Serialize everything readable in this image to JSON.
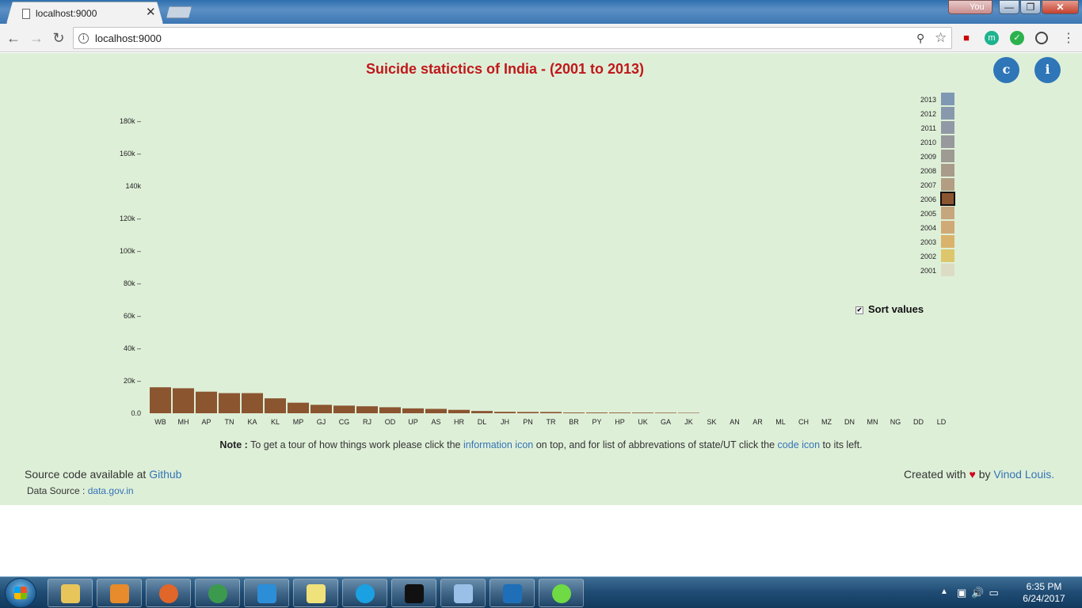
{
  "browser": {
    "tab_title": "localhost:9000",
    "tab_close": "✕",
    "url": "localhost:9000",
    "profile": "You",
    "buttons": {
      "back": "←",
      "forward": "→",
      "reload": "↻",
      "menu": "⋮",
      "zoom": "🔍",
      "bookmark": "☆"
    },
    "window": {
      "minimize": "—",
      "maximize": "❐",
      "close": "✕"
    },
    "extensions": [
      "m",
      "✓"
    ]
  },
  "page": {
    "title": "Suicide statictics of India - (2001 to 2013)",
    "code_button": "c",
    "info_button": "i",
    "sort_label": "Sort values",
    "sort_checked": true,
    "selected_year": "2006",
    "note": {
      "label": "Note :",
      "text1": "To get a tour of how things work please click the",
      "link1": "information icon",
      "text2": "on top, and for list of abbrevations of state/UT click the",
      "link2": "code icon",
      "text3": "to its left."
    },
    "footer": {
      "source_text": "Source code available at",
      "source_link": "Github",
      "data_text": "Data Source :",
      "data_link": "data.gov.in",
      "credit_text": "Created with",
      "heart": "♥",
      "credit_by": "by",
      "credit_link": "Vinod Louis."
    }
  },
  "chart_data": {
    "type": "bar",
    "title": "Suicide statictics of India - (2001 to 2013)",
    "series_year": "2006",
    "bar_color": "#8b5530",
    "categories": [
      "WB",
      "MH",
      "AP",
      "TN",
      "KA",
      "KL",
      "MP",
      "GJ",
      "CG",
      "RJ",
      "OD",
      "UP",
      "AS",
      "HR",
      "DL",
      "JH",
      "PN",
      "TR",
      "BR",
      "PY",
      "HP",
      "UK",
      "GA",
      "JK",
      "SK",
      "AN",
      "AR",
      "ML",
      "CH",
      "MZ",
      "DN",
      "MN",
      "NG",
      "DD",
      "LD"
    ],
    "values": [
      16000,
      15400,
      13300,
      12400,
      12400,
      9200,
      6500,
      5200,
      4700,
      4300,
      3700,
      3000,
      2700,
      2100,
      1400,
      900,
      800,
      800,
      450,
      450,
      420,
      400,
      350,
      280,
      0,
      0,
      0,
      0,
      0,
      0,
      0,
      0,
      0,
      0,
      0
    ],
    "ylim": [
      0,
      180000
    ],
    "y_ticks": [
      {
        "value": 0,
        "label": "0.0"
      },
      {
        "value": 20000,
        "label": "20k –"
      },
      {
        "value": 40000,
        "label": "40k –"
      },
      {
        "value": 60000,
        "label": "60k –"
      },
      {
        "value": 80000,
        "label": "80k –"
      },
      {
        "value": 100000,
        "label": "100k –"
      },
      {
        "value": 120000,
        "label": "120k –"
      },
      {
        "value": 140000,
        "label": "140k"
      },
      {
        "value": 160000,
        "label": "160k –"
      },
      {
        "value": 180000,
        "label": "180k –"
      }
    ],
    "legend": [
      {
        "year": "2013",
        "color": "#7f98b3"
      },
      {
        "year": "2012",
        "color": "#8899ad"
      },
      {
        "year": "2011",
        "color": "#9099a5"
      },
      {
        "year": "2010",
        "color": "#97999c"
      },
      {
        "year": "2009",
        "color": "#9e9b93"
      },
      {
        "year": "2008",
        "color": "#a89b8a"
      },
      {
        "year": "2007",
        "color": "#b39d83"
      },
      {
        "year": "2006",
        "color": "#8b5530"
      },
      {
        "year": "2005",
        "color": "#c6a67c"
      },
      {
        "year": "2004",
        "color": "#d0aa76"
      },
      {
        "year": "2003",
        "color": "#d9b36c"
      },
      {
        "year": "2002",
        "color": "#ddc66c"
      },
      {
        "year": "2001",
        "color": "#dcdcc4"
      }
    ]
  },
  "taskbar": {
    "clock_time": "6:35 PM",
    "clock_date": "6/24/2017",
    "tray_arrow": "▲",
    "tray_icons": "▣🔊▭",
    "apps": [
      {
        "name": "explorer",
        "color": "#e8c55a"
      },
      {
        "name": "media-player",
        "color": "#e78b2c"
      },
      {
        "name": "firefox",
        "color": "#e0662a"
      },
      {
        "name": "chrome",
        "color": "#3c9a4e"
      },
      {
        "name": "internet-explorer",
        "color": "#2d8ed8"
      },
      {
        "name": "sticky-notes",
        "color": "#f0e27a"
      },
      {
        "name": "skype",
        "color": "#1ba1e2"
      },
      {
        "name": "cmd",
        "color": "#111111"
      },
      {
        "name": "paint",
        "color": "#9ac0e8"
      },
      {
        "name": "wifi",
        "color": "#1e6fb8"
      },
      {
        "name": "upwork",
        "color": "#6fda44"
      }
    ]
  }
}
